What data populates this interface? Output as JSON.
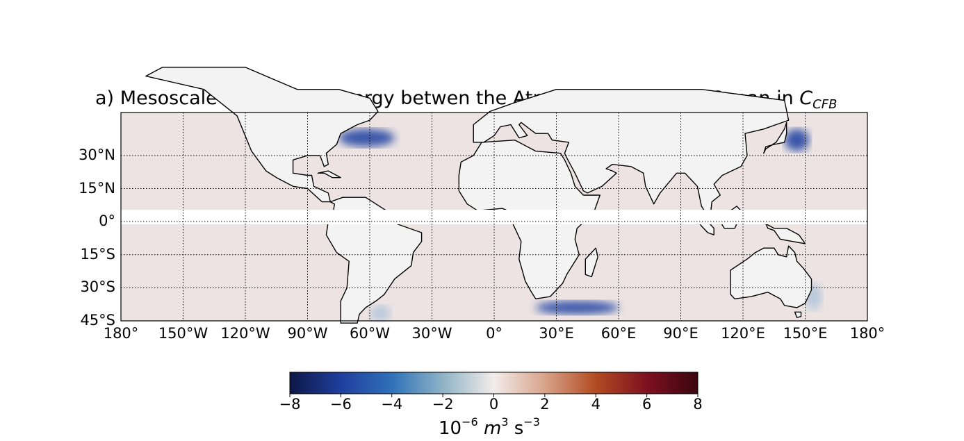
{
  "figure": {
    "panel_label": "a)",
    "title_text": "Mesoscale Transfer of Energy betwen the Atmosphere and the Ocean in",
    "title_symbol": "C",
    "title_subscript": "CFB"
  },
  "map": {
    "projection": "equirectangular",
    "lon_range": [
      -180,
      180
    ],
    "lat_range": [
      -45,
      45
    ],
    "masked_band": "equatorial band (approx. 3°S–3°N) left blank",
    "gridlines": "dotted",
    "lat_ticks": [
      {
        "label": "30°N",
        "value": 30
      },
      {
        "label": "15°N",
        "value": 15
      },
      {
        "label": "0°",
        "value": 0
      },
      {
        "label": "15°S",
        "value": -15
      },
      {
        "label": "30°S",
        "value": -30
      },
      {
        "label": "45°S",
        "value": -45
      }
    ],
    "lon_ticks": [
      {
        "label": "180°",
        "value": -180
      },
      {
        "label": "150°W",
        "value": -150
      },
      {
        "label": "120°W",
        "value": -120
      },
      {
        "label": "90°W",
        "value": -90
      },
      {
        "label": "60°W",
        "value": -60
      },
      {
        "label": "30°W",
        "value": -30
      },
      {
        "label": "0°",
        "value": 0
      },
      {
        "label": "30°E",
        "value": 30
      },
      {
        "label": "60°E",
        "value": 60
      },
      {
        "label": "90°E",
        "value": 90
      },
      {
        "label": "120°E",
        "value": 120
      },
      {
        "label": "150°E",
        "value": 150
      },
      {
        "label": "180°",
        "value": 180
      }
    ],
    "colors": {
      "land": "#f3f3f3",
      "ocean_background": "#ece3e2",
      "coastline": "#000000",
      "strong_negative": "#1a3fa0",
      "weak_negative": "#8fb3d6",
      "positive": "#c2463a"
    },
    "features": [
      {
        "name": "Gulf Stream",
        "lon": [
          -75,
          -48
        ],
        "lat": [
          34,
          42
        ],
        "sign": "negative",
        "strength": "strong"
      },
      {
        "name": "Kuroshio",
        "lon": [
          140,
          152
        ],
        "lat": [
          32,
          42
        ],
        "sign": "negative",
        "strength": "strong"
      },
      {
        "name": "Agulhas Return Current",
        "lon": [
          20,
          60
        ],
        "lat": [
          -42,
          -36
        ],
        "sign": "negative",
        "strength": "strong"
      },
      {
        "name": "Brazil-Malvinas Confluence",
        "lon": [
          -60,
          -50
        ],
        "lat": [
          -45,
          -38
        ],
        "sign": "negative",
        "strength": "moderate"
      },
      {
        "name": "East Australian Current",
        "lon": [
          150,
          158
        ],
        "lat": [
          -40,
          -28
        ],
        "sign": "negative",
        "strength": "moderate"
      }
    ]
  },
  "colorbar": {
    "colormap": "diverging blue-white-red",
    "range": [
      -8,
      8
    ],
    "tick_labels": [
      "−8",
      "−6",
      "−4",
      "−2",
      "0",
      "2",
      "4",
      "6",
      "8"
    ],
    "stops": [
      "#0d1746",
      "#1f3f9e",
      "#2f71b8",
      "#8fb3c6",
      "#f2ecea",
      "#d8a38a",
      "#b24b22",
      "#7e1020",
      "#3a0510"
    ],
    "unit": {
      "base": "10",
      "exp1": "−6",
      "m": "m",
      "exp2": "3",
      "s": "s",
      "exp3": "−3"
    }
  }
}
